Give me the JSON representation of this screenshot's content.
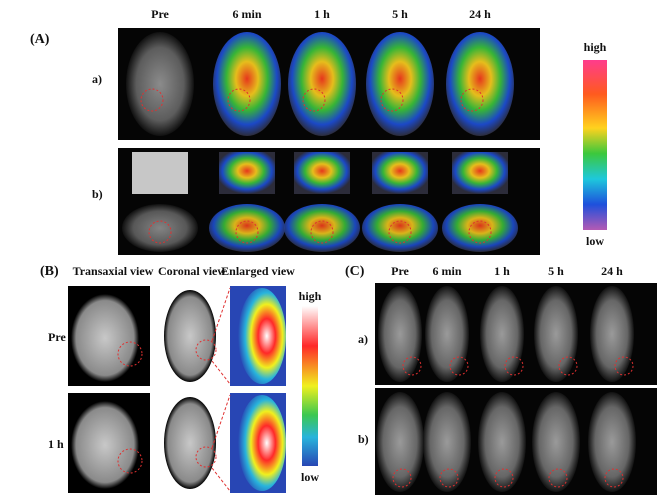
{
  "panel_a": {
    "label": "(A)",
    "columns": [
      "Pre",
      "6 min",
      "1 h",
      "5 h",
      "24 h"
    ],
    "rows": [
      "a)",
      "b)"
    ],
    "scale_high": "high",
    "scale_low": "low"
  },
  "panel_b": {
    "label": "(B)",
    "columns": [
      "Transaxial view",
      "Coronal view",
      "Enlarged view"
    ],
    "rows": [
      "Pre",
      "1 h"
    ],
    "scale_high": "high",
    "scale_low": "low"
  },
  "panel_c": {
    "label": "(C)",
    "columns": [
      "Pre",
      "6 min",
      "1 h",
      "5 h",
      "24 h"
    ],
    "rows": [
      "a)",
      "b)"
    ]
  }
}
